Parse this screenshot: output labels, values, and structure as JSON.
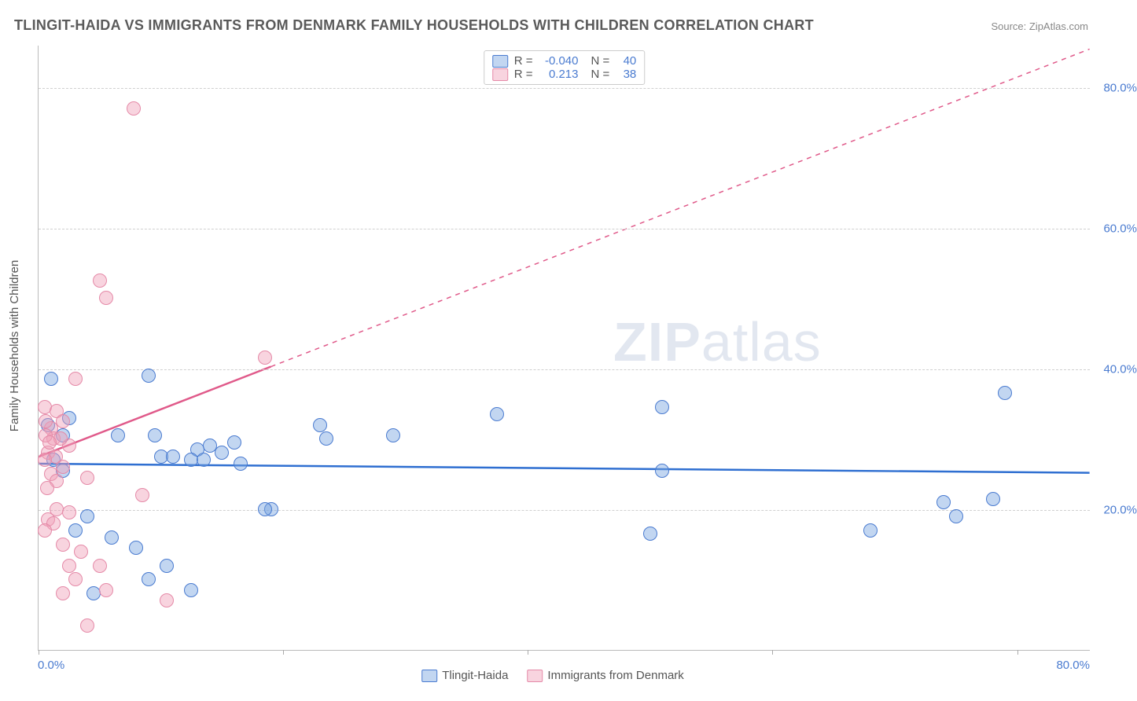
{
  "title": "TLINGIT-HAIDA VS IMMIGRANTS FROM DENMARK FAMILY HOUSEHOLDS WITH CHILDREN CORRELATION CHART",
  "source": "Source: ZipAtlas.com",
  "ylabel": "Family Households with Children",
  "watermark_zip": "ZIP",
  "watermark_atlas": "atlas",
  "chart": {
    "type": "scatter",
    "xlim": [
      0,
      86
    ],
    "ylim": [
      0,
      86
    ],
    "x_axis_left_label": "0.0%",
    "x_axis_right_label": "80.0%",
    "x_tick_positions": [
      0,
      20,
      40,
      60,
      80
    ],
    "y_gridlines": [
      20,
      40,
      60,
      80
    ],
    "y_tick_labels": [
      "20.0%",
      "40.0%",
      "60.0%",
      "80.0%"
    ],
    "background_color": "#ffffff",
    "grid_color": "#d0d0d0",
    "axis_color": "#bbbbbb",
    "label_color": "#4a7bd0",
    "series": [
      {
        "name": "Tlingit-Haida",
        "marker_fill": "rgba(120,165,225,0.45)",
        "marker_stroke": "#4a7bd0",
        "marker_radius": 9,
        "trend_color": "#2f6fd1",
        "trend_width": 2.5,
        "trend_solid_end_x": 86,
        "trend_y0": 26.5,
        "trend_y1": 25.2,
        "R": "-0.040",
        "N": "40",
        "points": [
          [
            1.0,
            38.5
          ],
          [
            2.5,
            33.0
          ],
          [
            9.0,
            39.0
          ],
          [
            0.8,
            32.0
          ],
          [
            2.0,
            30.5
          ],
          [
            6.5,
            30.5
          ],
          [
            9.5,
            30.5
          ],
          [
            13.0,
            28.5
          ],
          [
            14.0,
            29.0
          ],
          [
            15.0,
            28.0
          ],
          [
            16.0,
            29.5
          ],
          [
            10.0,
            27.5
          ],
          [
            12.5,
            27.0
          ],
          [
            23.0,
            32.0
          ],
          [
            29.0,
            30.5
          ],
          [
            37.5,
            33.5
          ],
          [
            51.0,
            34.5
          ],
          [
            79.0,
            36.5
          ],
          [
            3.0,
            17.0
          ],
          [
            4.0,
            19.0
          ],
          [
            6.0,
            16.0
          ],
          [
            8.0,
            14.5
          ],
          [
            9.0,
            10.0
          ],
          [
            10.5,
            12.0
          ],
          [
            12.5,
            8.5
          ],
          [
            4.5,
            8.0
          ],
          [
            19.0,
            20.0
          ],
          [
            18.5,
            20.0
          ],
          [
            51.0,
            25.5
          ],
          [
            50.0,
            16.5
          ],
          [
            68.0,
            17.0
          ],
          [
            75.0,
            19.0
          ],
          [
            78.0,
            21.5
          ],
          [
            74.0,
            21.0
          ],
          [
            11.0,
            27.5
          ],
          [
            13.5,
            27.0
          ],
          [
            16.5,
            26.5
          ],
          [
            2.0,
            25.5
          ],
          [
            1.2,
            27.0
          ],
          [
            23.5,
            30.0
          ]
        ]
      },
      {
        "name": "Immigrants from Denmark",
        "marker_fill": "rgba(240,160,185,0.45)",
        "marker_stroke": "#e58aa8",
        "marker_radius": 9,
        "trend_color": "#e05a8a",
        "trend_width": 2.5,
        "trend_solid_end_x": 19,
        "trend_y0": 27.5,
        "trend_y1": 85.5,
        "R": "0.213",
        "N": "38",
        "points": [
          [
            7.8,
            77.0
          ],
          [
            5.0,
            52.5
          ],
          [
            5.5,
            50.0
          ],
          [
            3.0,
            38.5
          ],
          [
            18.5,
            41.5
          ],
          [
            0.5,
            34.5
          ],
          [
            1.5,
            34.0
          ],
          [
            1.0,
            31.5
          ],
          [
            2.0,
            32.5
          ],
          [
            1.2,
            30.0
          ],
          [
            0.6,
            30.5
          ],
          [
            2.5,
            29.0
          ],
          [
            0.8,
            28.0
          ],
          [
            1.4,
            27.5
          ],
          [
            0.5,
            27.0
          ],
          [
            2.0,
            26.0
          ],
          [
            1.0,
            25.0
          ],
          [
            1.5,
            24.0
          ],
          [
            4.0,
            24.5
          ],
          [
            0.7,
            23.0
          ],
          [
            1.5,
            20.0
          ],
          [
            2.5,
            19.5
          ],
          [
            0.8,
            18.5
          ],
          [
            1.2,
            18.0
          ],
          [
            0.5,
            17.0
          ],
          [
            2.0,
            15.0
          ],
          [
            3.5,
            14.0
          ],
          [
            8.5,
            22.0
          ],
          [
            2.5,
            12.0
          ],
          [
            5.0,
            12.0
          ],
          [
            3.0,
            10.0
          ],
          [
            5.5,
            8.5
          ],
          [
            2.0,
            8.0
          ],
          [
            10.5,
            7.0
          ],
          [
            4.0,
            3.5
          ],
          [
            0.6,
            32.5
          ],
          [
            1.8,
            30.0
          ],
          [
            0.9,
            29.5
          ]
        ]
      }
    ]
  },
  "bottom_legend": [
    "Tlingit-Haida",
    "Immigrants from Denmark"
  ]
}
